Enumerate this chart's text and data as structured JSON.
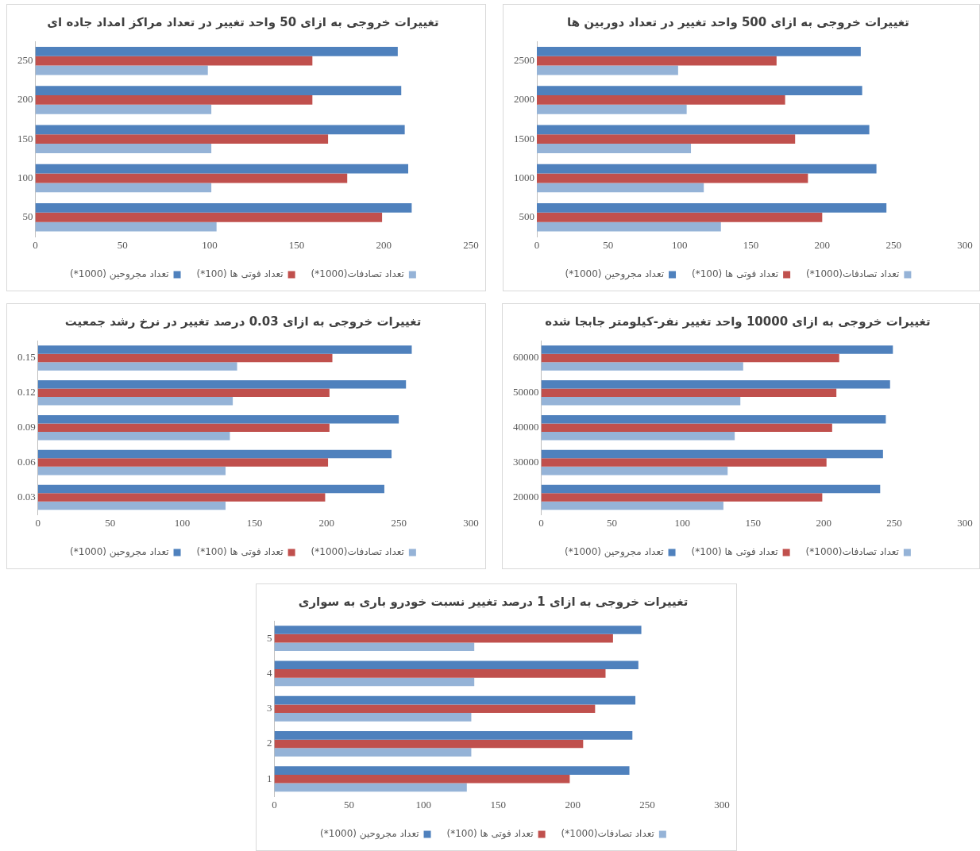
{
  "chart_data": [
    {
      "type": "bar",
      "orientation": "horizontal",
      "title": "تغییرات خروجی به ازای 50 واحد تغییر در تعداد مراکز امداد جاده ای",
      "categories": [
        "250",
        "200",
        "150",
        "100",
        "50"
      ],
      "series": [
        {
          "name": "تعداد مجروحین (1000*)",
          "color": "#4f81bd",
          "values": [
            208,
            210,
            212,
            214,
            216
          ]
        },
        {
          "name": "تعداد فوتی ها (100*)",
          "color": "#c0504d",
          "values": [
            159,
            159,
            168,
            179,
            199
          ]
        },
        {
          "name": "تعداد تصادفات(1000*)",
          "color": "#95b3d7",
          "values": [
            99,
            101,
            101,
            101,
            104
          ]
        }
      ],
      "xlim": [
        0,
        250
      ],
      "xticks": [
        0,
        50,
        100,
        150,
        200,
        250
      ],
      "grid": false,
      "legend": "bottom"
    },
    {
      "type": "bar",
      "orientation": "horizontal",
      "title": "تغییرات خروجی به ازای 500 واحد تغییر در تعداد دوربین ها",
      "categories": [
        "2500",
        "2000",
        "1500",
        "1000",
        "500"
      ],
      "series": [
        {
          "name": "تعداد مجروحین (1000*)",
          "color": "#4f81bd",
          "values": [
            227,
            228,
            233,
            238,
            245
          ]
        },
        {
          "name": "تعداد فوتی ها (100*)",
          "color": "#c0504d",
          "values": [
            168,
            174,
            181,
            190,
            200
          ]
        },
        {
          "name": "تعداد تصادفات(1000*)",
          "color": "#95b3d7",
          "values": [
            99,
            105,
            108,
            117,
            129
          ]
        }
      ],
      "xlim": [
        0,
        300
      ],
      "xticks": [
        0,
        50,
        100,
        150,
        200,
        250,
        300
      ],
      "grid": false,
      "legend": "bottom"
    },
    {
      "type": "bar",
      "orientation": "horizontal",
      "title": "تغییرات خروجی به ازای 0.03 درصد تغییر در نرخ رشد جمعیت",
      "categories": [
        "0.15",
        "0.12",
        "0.09",
        "0.06",
        "0.03"
      ],
      "series": [
        {
          "name": "تعداد مجروحین (1000*)",
          "color": "#4f81bd",
          "values": [
            259,
            255,
            250,
            245,
            240
          ]
        },
        {
          "name": "تعداد فوتی ها (100*)",
          "color": "#c0504d",
          "values": [
            204,
            202,
            202,
            201,
            199
          ]
        },
        {
          "name": "تعداد تصادفات(1000*)",
          "color": "#95b3d7",
          "values": [
            138,
            135,
            133,
            130,
            130
          ]
        }
      ],
      "xlim": [
        0,
        300
      ],
      "xticks": [
        0,
        50,
        100,
        150,
        200,
        250,
        300
      ],
      "grid": false,
      "legend": "bottom"
    },
    {
      "type": "bar",
      "orientation": "horizontal",
      "title": "تغییرات خروجی به ازای 10000 واحد تغییر نفر-کیلومتر جابجا شده",
      "categories": [
        "60000",
        "50000",
        "40000",
        "30000",
        "20000"
      ],
      "series": [
        {
          "name": "تعداد مجروحین (1000*)",
          "color": "#4f81bd",
          "values": [
            249,
            247,
            244,
            242,
            240
          ]
        },
        {
          "name": "تعداد فوتی ها (100*)",
          "color": "#c0504d",
          "values": [
            211,
            209,
            206,
            202,
            199
          ]
        },
        {
          "name": "تعداد تصادفات(1000*)",
          "color": "#95b3d7",
          "values": [
            143,
            141,
            137,
            132,
            129
          ]
        }
      ],
      "xlim": [
        0,
        300
      ],
      "xticks": [
        0,
        50,
        100,
        150,
        200,
        250,
        300
      ],
      "grid": false,
      "legend": "bottom"
    },
    {
      "type": "bar",
      "orientation": "horizontal",
      "title": "تغییرات خروجی به ازای 1 درصد تغییر نسبت خودرو باری به سواری",
      "categories": [
        "5",
        "4",
        "3",
        "2",
        "1"
      ],
      "series": [
        {
          "name": "تعداد مجروحین (1000*)",
          "color": "#4f81bd",
          "values": [
            246,
            244,
            242,
            240,
            238
          ]
        },
        {
          "name": "تعداد فوتی ها (100*)",
          "color": "#c0504d",
          "values": [
            227,
            222,
            215,
            207,
            198
          ]
        },
        {
          "name": "تعداد تصادفات(1000*)",
          "color": "#95b3d7",
          "values": [
            134,
            134,
            132,
            132,
            129
          ]
        }
      ],
      "xlim": [
        0,
        300
      ],
      "xticks": [
        0,
        50,
        100,
        150,
        200,
        250,
        300
      ],
      "grid": false,
      "legend": "bottom"
    }
  ]
}
